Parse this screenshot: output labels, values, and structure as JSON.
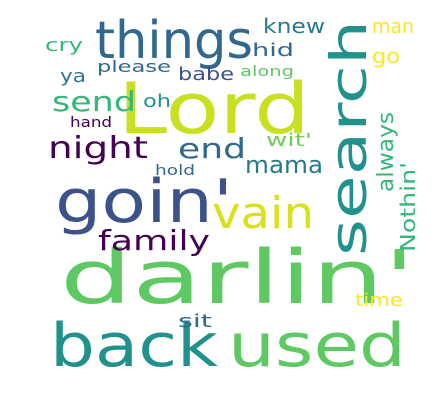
{
  "word_cloud": {
    "background": "#ffffff",
    "palette": "viridis",
    "words": [
      {
        "text": "darlin'",
        "color": "#5ec962"
      },
      {
        "text": "Lord",
        "color": "#c8e020"
      },
      {
        "text": "back",
        "color": "#21918c"
      },
      {
        "text": "used",
        "color": "#5ec962"
      },
      {
        "text": "goin'",
        "color": "#3b528b"
      },
      {
        "text": "search",
        "color": "#21918c"
      },
      {
        "text": "things",
        "color": "#31688e"
      },
      {
        "text": "vain",
        "color": "#d8e219"
      },
      {
        "text": "night",
        "color": "#440154"
      },
      {
        "text": "family",
        "color": "#440154"
      },
      {
        "text": "send",
        "color": "#35b779"
      },
      {
        "text": "end",
        "color": "#31688e"
      },
      {
        "text": "mama",
        "color": "#2a788e"
      },
      {
        "text": "always",
        "color": "#35b779"
      },
      {
        "text": "Nothin'",
        "color": "#35b779"
      },
      {
        "text": "knew",
        "color": "#2a788e"
      },
      {
        "text": "man",
        "color": "#fde725"
      },
      {
        "text": "go",
        "color": "#fde725"
      },
      {
        "text": "cry",
        "color": "#35b779"
      },
      {
        "text": "hid",
        "color": "#31688e"
      },
      {
        "text": "ya",
        "color": "#2a788e"
      },
      {
        "text": "please",
        "color": "#31688e"
      },
      {
        "text": "babe",
        "color": "#3b528b"
      },
      {
        "text": "along",
        "color": "#5ec962"
      },
      {
        "text": "oh",
        "color": "#21918c"
      },
      {
        "text": "wit'",
        "color": "#6ece58"
      },
      {
        "text": "hand",
        "color": "#440154"
      },
      {
        "text": "hold",
        "color": "#31688e"
      },
      {
        "text": "time",
        "color": "#fde725"
      },
      {
        "text": "sit",
        "color": "#31688e"
      }
    ]
  }
}
